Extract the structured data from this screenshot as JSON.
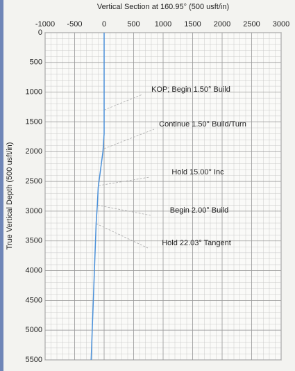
{
  "chart_data": {
    "type": "line",
    "title": "Vertical Section at 160.95° (500 usft/in)",
    "y_label": "True Vertical Depth (500 usft/in)",
    "xlim": [
      -1000,
      3000
    ],
    "xticks": [
      -1000,
      -500,
      0,
      500,
      1000,
      1500,
      2000,
      2500,
      3000
    ],
    "ylim": [
      0,
      5500
    ],
    "yticks": [
      0,
      500,
      1000,
      1500,
      2000,
      2500,
      3000,
      3500,
      4000,
      4500,
      5000,
      5500
    ],
    "y_inverted": true,
    "grid": true,
    "minor_grid": true,
    "series": [
      {
        "color": "#4a90d9",
        "x": [
          0,
          0,
          0,
          -20,
          -60,
          -100,
          -115,
          -135,
          -220
        ],
        "values": [
          0,
          1300,
          1700,
          2000,
          2300,
          2600,
          2900,
          3200,
          5500
        ]
      }
    ],
    "annotations": [
      {
        "text": "KOP; Begin 1.50° Build",
        "x": 0,
        "y": 1300
      },
      {
        "text": "Continue 1.50° Build/Turn",
        "x": 0,
        "y": 1950
      },
      {
        "text": "Hold 15.00° Inc",
        "x": -90,
        "y": 2570
      },
      {
        "text": "Begin 2.00° Build",
        "x": -110,
        "y": 2900
      },
      {
        "text": "Hold 22.03° Tangent",
        "x": -135,
        "y": 3210
      }
    ]
  }
}
